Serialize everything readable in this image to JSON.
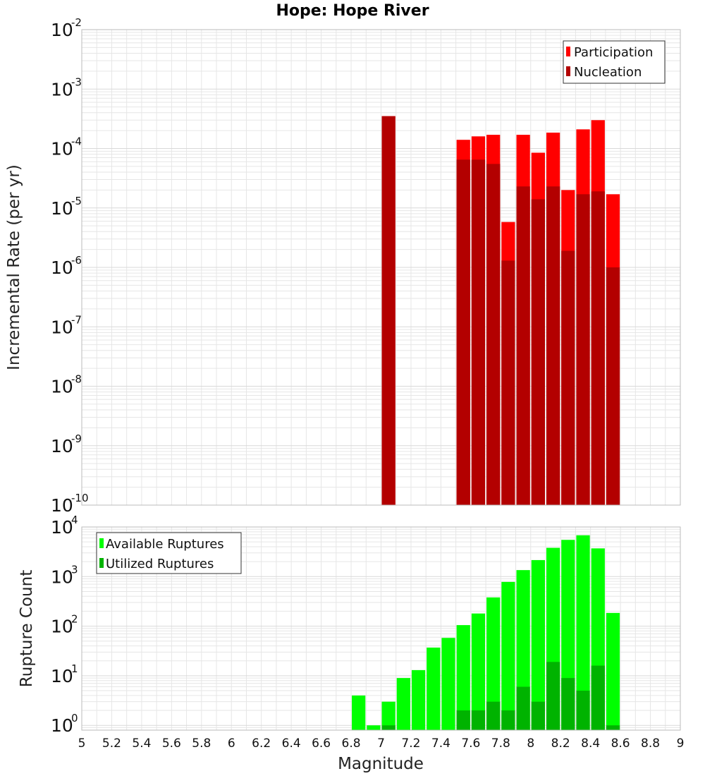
{
  "title": "Hope: Hope River",
  "xlabel": "Magnitude",
  "colors": {
    "participation": "#ff0000",
    "nucleation": "#b30000",
    "available": "#00ff00",
    "utilized": "#00b300",
    "grid": "#e6e6e6",
    "border": "#bbbbbb"
  },
  "chart_data": [
    {
      "type": "bar",
      "ylabel": "Incremental Rate (per yr)",
      "yscale": "log",
      "ylim": [
        1e-10,
        0.01
      ],
      "xlim": [
        5,
        9
      ],
      "bin_width": 0.1,
      "ytick_base": "10",
      "ytick_exponents": [
        "-10",
        "-9",
        "-8",
        "-7",
        "-6",
        "-5",
        "-4",
        "-3",
        "-2"
      ],
      "legend_position": "top-right",
      "series": [
        {
          "name": "Participation",
          "color": "#ff0000",
          "x": [
            7.05,
            7.55,
            7.65,
            7.75,
            7.85,
            7.95,
            8.05,
            8.15,
            8.25,
            8.35,
            8.45,
            8.55
          ],
          "values": [
            0.00035,
            0.00014,
            0.00016,
            0.00017,
            5.8e-06,
            0.00017,
            8.5e-05,
            0.000185,
            2e-05,
            0.00021,
            0.0003,
            1.7e-05
          ]
        },
        {
          "name": "Nucleation",
          "color": "#b30000",
          "x": [
            7.05,
            7.55,
            7.65,
            7.75,
            7.85,
            7.95,
            8.05,
            8.15,
            8.25,
            8.35,
            8.45,
            8.55
          ],
          "values": [
            0.00035,
            6.5e-05,
            6.5e-05,
            5.5e-05,
            1.3e-06,
            2.3e-05,
            1.4e-05,
            2.3e-05,
            1.9e-06,
            1.7e-05,
            1.9e-05,
            1e-06
          ]
        }
      ]
    },
    {
      "type": "bar",
      "ylabel": "Rupture Count",
      "yscale": "log",
      "ylim": [
        0.8,
        10000
      ],
      "xlim": [
        5,
        9
      ],
      "bin_width": 0.1,
      "ytick_base": "10",
      "ytick_exponents": [
        "0",
        "1",
        "2",
        "3",
        "4"
      ],
      "xticks": [
        "5",
        "5.2",
        "5.4",
        "5.6",
        "5.8",
        "6",
        "6.2",
        "6.4",
        "6.6",
        "6.8",
        "7",
        "7.2",
        "7.4",
        "7.6",
        "7.8",
        "8",
        "8.2",
        "8.4",
        "8.6",
        "8.8",
        "9"
      ],
      "legend_position": "top-left",
      "series": [
        {
          "name": "Available Ruptures",
          "color": "#00ff00",
          "x": [
            6.85,
            6.95,
            7.05,
            7.15,
            7.25,
            7.35,
            7.45,
            7.55,
            7.65,
            7.75,
            7.85,
            7.95,
            8.05,
            8.15,
            8.25,
            8.35,
            8.45,
            8.55
          ],
          "values": [
            4,
            1,
            3,
            9,
            13,
            37,
            58,
            105,
            180,
            380,
            780,
            1350,
            2150,
            3800,
            5500,
            6800,
            3700,
            185
          ]
        },
        {
          "name": "Utilized Ruptures",
          "color": "#00b300",
          "x": [
            7.05,
            7.55,
            7.65,
            7.75,
            7.85,
            7.95,
            8.05,
            8.15,
            8.25,
            8.35,
            8.45,
            8.55
          ],
          "values": [
            1,
            2,
            2,
            3,
            2,
            6,
            3,
            19,
            9,
            5,
            16,
            1
          ]
        }
      ]
    }
  ]
}
